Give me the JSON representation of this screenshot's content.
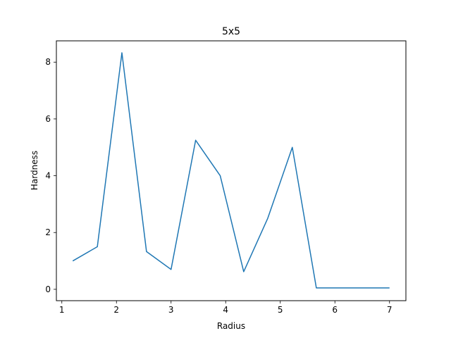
{
  "chart_data": {
    "type": "line",
    "title": "5x5",
    "xlabel": "Radius",
    "ylabel": "Hardness",
    "xlim": [
      0.9,
      7.3
    ],
    "ylim": [
      -0.4,
      8.75
    ],
    "xticks": [
      1,
      2,
      3,
      4,
      5,
      6,
      7
    ],
    "yticks": [
      0,
      2,
      4,
      6,
      8
    ],
    "grid": false,
    "legend": "none",
    "series": [
      {
        "color": "#1f77b4",
        "x": [
          1.2,
          1.65,
          2.1,
          2.55,
          3.0,
          3.45,
          3.9,
          4.33,
          4.77,
          5.22,
          5.66,
          6.1,
          6.55,
          7.0
        ],
        "y": [
          1.0,
          1.5,
          8.33,
          1.33,
          0.7,
          5.25,
          4.0,
          0.62,
          2.5,
          5.0,
          0.05,
          0.05,
          0.05,
          0.05
        ]
      }
    ]
  }
}
